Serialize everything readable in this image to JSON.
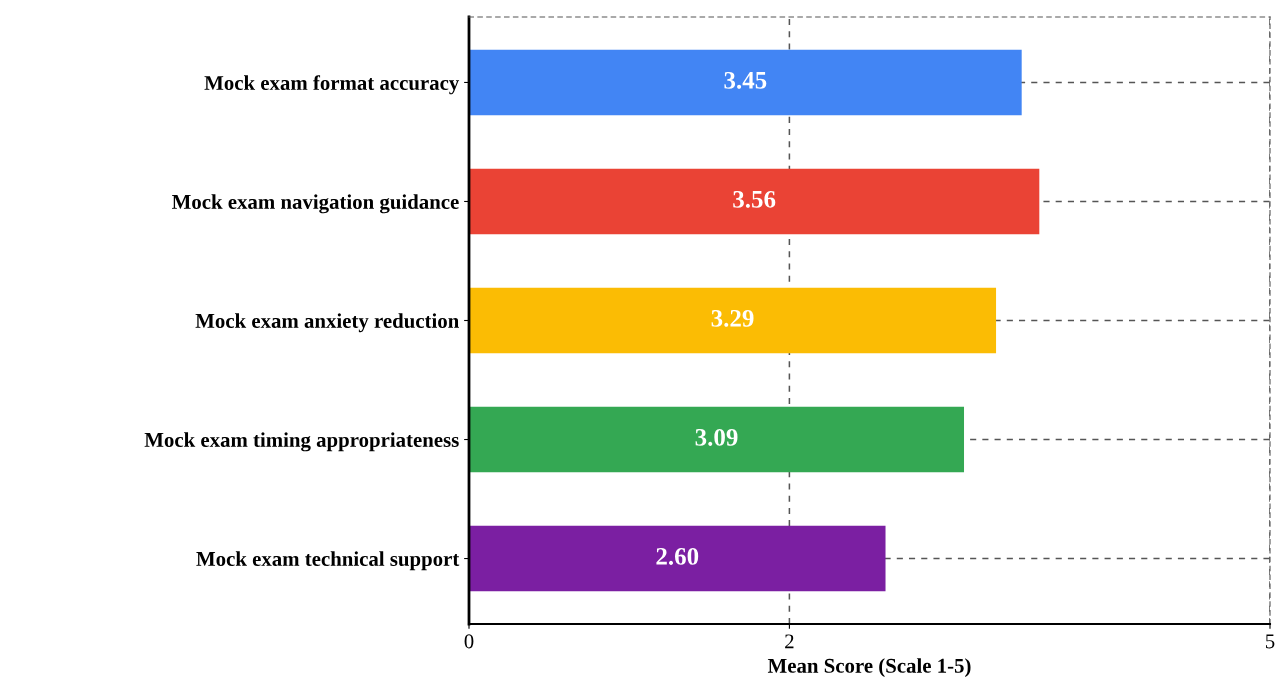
{
  "chart_data": {
    "type": "bar",
    "orientation": "horizontal",
    "xlabel": "Mean Score (Scale 1-5)",
    "categories": [
      "Mock exam format accuracy",
      "Mock exam navigation guidance",
      "Mock exam anxiety reduction",
      "Mock exam timing appropriateness",
      "Mock exam technical support"
    ],
    "values": [
      3.45,
      3.56,
      3.29,
      3.09,
      2.6
    ],
    "value_labels": [
      "3.45",
      "3.56",
      "3.29",
      "3.09",
      "2.60"
    ],
    "colors": [
      "#4285f4",
      "#ea4335",
      "#fbbc04",
      "#34a853",
      "#7b1fa2"
    ],
    "xlim": [
      0,
      5
    ],
    "xticks": [
      0,
      2,
      5
    ],
    "grid": true
  }
}
